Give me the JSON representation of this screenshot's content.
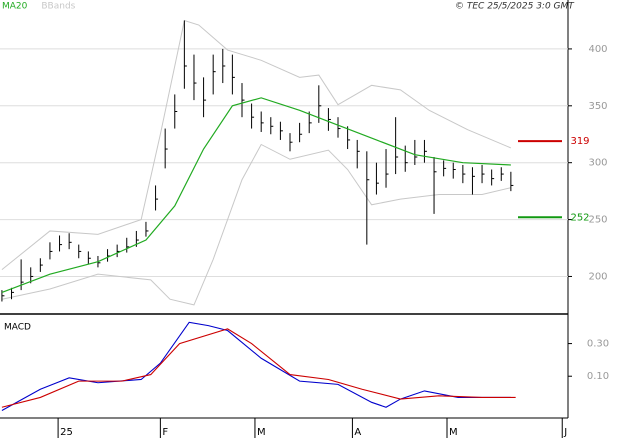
{
  "chart_data": [
    {
      "type": "ohlc",
      "credit": "© TEC 25/5/2025 3:0 GMT",
      "xlim": [
        -0.4,
        117.9
      ],
      "ylim": [
        167,
        443
      ],
      "yticks": [
        200,
        250,
        300,
        350,
        400
      ],
      "grid": true,
      "bar_color": "#000000",
      "bars": {
        "x": [
          0,
          2,
          4,
          6,
          8,
          10,
          12,
          14,
          16,
          18,
          20,
          22,
          24,
          26,
          28,
          30,
          32,
          34,
          36,
          38,
          40,
          42,
          44,
          46,
          48,
          50,
          52,
          54,
          56,
          58,
          60,
          62,
          64,
          66,
          68,
          70,
          72,
          74,
          76,
          78,
          80,
          82,
          84,
          86,
          88,
          90,
          92,
          94,
          96,
          98,
          100,
          102,
          104,
          106
        ],
        "high": [
          188,
          190,
          215,
          208,
          216,
          230,
          236,
          238,
          228,
          222,
          218,
          224,
          228,
          234,
          240,
          248,
          280,
          330,
          360,
          425,
          395,
          375,
          395,
          400,
          395,
          370,
          352,
          345,
          340,
          336,
          326,
          335,
          345,
          368,
          348,
          340,
          332,
          320,
          310,
          300,
          312,
          340,
          315,
          320,
          320,
          305,
          302,
          300,
          298,
          296,
          298,
          294,
          296,
          292
        ],
        "low": [
          178,
          180,
          188,
          194,
          204,
          215,
          222,
          224,
          216,
          211,
          208,
          213,
          217,
          221,
          226,
          235,
          258,
          295,
          330,
          365,
          355,
          340,
          360,
          370,
          360,
          340,
          330,
          327,
          325,
          320,
          310,
          318,
          326,
          335,
          328,
          322,
          312,
          295,
          228,
          272,
          278,
          290,
          292,
          298,
          300,
          255,
          288,
          286,
          282,
          272,
          282,
          280,
          284,
          275
        ],
        "close": [
          183,
          186,
          195,
          200,
          210,
          222,
          228,
          230,
          222,
          216,
          212,
          218,
          222,
          226,
          232,
          240,
          268,
          312,
          345,
          385,
          370,
          355,
          380,
          385,
          375,
          355,
          340,
          335,
          332,
          328,
          318,
          325,
          335,
          350,
          338,
          330,
          320,
          310,
          285,
          282,
          290,
          305,
          300,
          305,
          310,
          292,
          295,
          294,
          290,
          288,
          290,
          286,
          290,
          280
        ]
      },
      "series": [
        {
          "name": "MA20",
          "color": "#22aa22",
          "x": [
            0,
            10,
            20,
            30,
            36,
            42,
            48,
            54,
            62,
            70,
            78,
            86,
            96,
            106
          ],
          "values": [
            186,
            202,
            213,
            232,
            262,
            312,
            350,
            357,
            346,
            333,
            320,
            307,
            300,
            298
          ]
        },
        {
          "name": "BBands",
          "color": "#c8c8c8",
          "x": [
            0,
            10,
            20,
            29,
            33,
            38,
            41,
            47,
            54,
            62,
            66,
            70,
            77,
            83,
            89,
            97,
            106
          ],
          "upper": [
            206,
            240,
            237,
            250,
            325,
            425,
            421,
            399,
            390,
            375,
            377,
            351,
            368,
            364,
            346,
            329,
            313
          ],
          "lower_x": [
            0,
            10,
            20,
            31,
            35,
            40,
            44,
            50,
            54,
            60,
            68,
            72,
            77,
            83,
            91,
            100,
            106
          ],
          "lower": [
            180,
            189,
            202,
            197,
            180,
            175,
            215,
            285,
            316,
            303,
            311,
            294,
            263,
            268,
            272,
            272,
            278
          ]
        }
      ],
      "levels": [
        {
          "value": 319,
          "color": "#cc0000"
        },
        {
          "value": 252,
          "color": "#119911"
        }
      ]
    },
    {
      "type": "line",
      "title": "MACD",
      "xlim": [
        -0.4,
        117.9
      ],
      "ylim": [
        -0.156,
        0.469
      ],
      "yticks": [
        {
          "value": 0.3,
          "label": "0.30"
        },
        {
          "value": 0.1,
          "label": "0.10"
        }
      ],
      "xticks": [
        {
          "value": 11.7,
          "label": "25"
        },
        {
          "value": 33,
          "label": "F"
        },
        {
          "value": 52.7,
          "label": "M"
        },
        {
          "value": 73,
          "label": "A"
        },
        {
          "value": 92.7,
          "label": "M"
        },
        {
          "value": 116.7,
          "label": "J"
        }
      ],
      "series": [
        {
          "color": "#0000cc",
          "x": [
            0,
            8,
            14,
            20,
            29,
            33,
            39,
            43,
            47,
            54,
            62,
            70,
            77,
            80,
            83,
            88,
            95,
            100,
            106
          ],
          "values": [
            -0.11,
            0.02,
            0.09,
            0.06,
            0.08,
            0.18,
            0.43,
            0.41,
            0.38,
            0.21,
            0.07,
            0.05,
            -0.06,
            -0.09,
            -0.04,
            0.01,
            -0.03,
            -0.03,
            -0.03
          ]
        },
        {
          "color": "#cc0000",
          "x": [
            0,
            8,
            16,
            25,
            31,
            37,
            47,
            52,
            60,
            68,
            75,
            83,
            91,
            100,
            107
          ],
          "values": [
            -0.09,
            -0.03,
            0.07,
            0.07,
            0.11,
            0.3,
            0.39,
            0.3,
            0.11,
            0.08,
            0.02,
            -0.04,
            -0.02,
            -0.03,
            -0.03
          ]
        }
      ]
    }
  ]
}
